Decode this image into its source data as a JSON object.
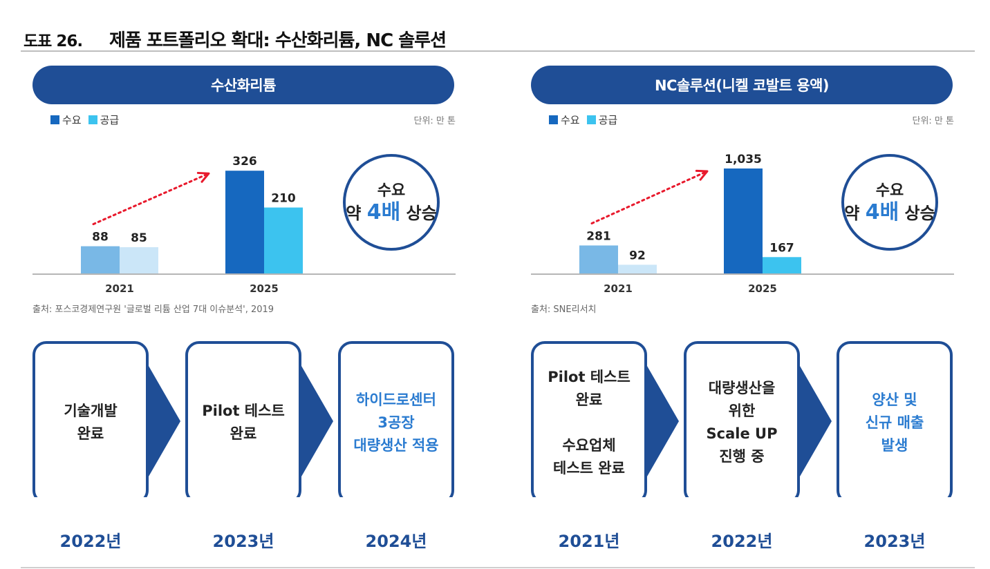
{
  "header": {
    "label": "도표 26.",
    "title": "제품 포트폴리오 확대: 수산화리튬, NC 솔루션"
  },
  "colors": {
    "navy": "#1f4e96",
    "demand_2021": "#79b8e6",
    "supply_2021": "#cbe6f8",
    "demand_2025": "#1668bf",
    "supply_2025": "#3cc3ef",
    "arrow": "#e8192c",
    "highlight_text": "#2a7bd0"
  },
  "panels": [
    {
      "pill_title": "수산화리튬",
      "legend": [
        "수요",
        "공급"
      ],
      "unit": "단위: 만 톤",
      "circle": {
        "line1": "수요",
        "pre": "약 ",
        "emph": "4배",
        "post": " 상승"
      },
      "source": "출처: 포스코경제연구원 '글로벌 리튬 산업 7대 이슈분석', 2019",
      "steps": [
        {
          "lines": [
            "기술개발",
            "완료"
          ],
          "highlight": false
        },
        {
          "lines": [
            "Pilot 테스트",
            "완료"
          ],
          "highlight": false
        },
        {
          "lines": [
            "하이드로센터",
            "3공장",
            "대량생산 적용"
          ],
          "highlight": true
        }
      ],
      "years": [
        "2022년",
        "2023년",
        "2024년"
      ]
    },
    {
      "pill_title": "NC솔루션(니켈 코발트 용액)",
      "legend": [
        "수요",
        "공급"
      ],
      "unit": "단위: 만 톤",
      "circle": {
        "line1": "수요",
        "pre": "약 ",
        "emph": "4배",
        "post": " 상승"
      },
      "source": "출처: SNE리서치",
      "steps": [
        {
          "lines": [
            "Pilot 테스트",
            "완료",
            "",
            "수요업체",
            "테스트 완료"
          ],
          "highlight": false
        },
        {
          "lines": [
            "대량생산을",
            "위한",
            "Scale UP",
            "진행 중"
          ],
          "highlight": false
        },
        {
          "lines": [
            "양산 및",
            "신규 매출",
            "발생"
          ],
          "highlight": true
        }
      ],
      "years": [
        "2021년",
        "2022년",
        "2023년"
      ]
    }
  ],
  "chart_data": [
    {
      "type": "bar",
      "title": "수산화리튬",
      "categories": [
        "2021",
        "2025"
      ],
      "series": [
        {
          "name": "수요",
          "values": [
            88,
            326
          ],
          "labels": [
            "88",
            "326"
          ]
        },
        {
          "name": "공급",
          "values": [
            85,
            210
          ],
          "labels": [
            "85",
            "210"
          ]
        }
      ],
      "ylim": [
        0,
        370
      ],
      "unit": "단위: 만 톤",
      "legend": "top-left",
      "grid": false
    },
    {
      "type": "bar",
      "title": "NC솔루션(니켈 코발트 용액)",
      "categories": [
        "2021",
        "2025"
      ],
      "series": [
        {
          "name": "수요",
          "values": [
            281,
            1035
          ],
          "labels": [
            "281",
            "1,035"
          ]
        },
        {
          "name": "공급",
          "values": [
            92,
            167
          ],
          "labels": [
            "92",
            "167"
          ]
        }
      ],
      "ylim": [
        0,
        1150
      ],
      "unit": "단위: 만 톤",
      "legend": "top-left",
      "grid": false
    }
  ]
}
